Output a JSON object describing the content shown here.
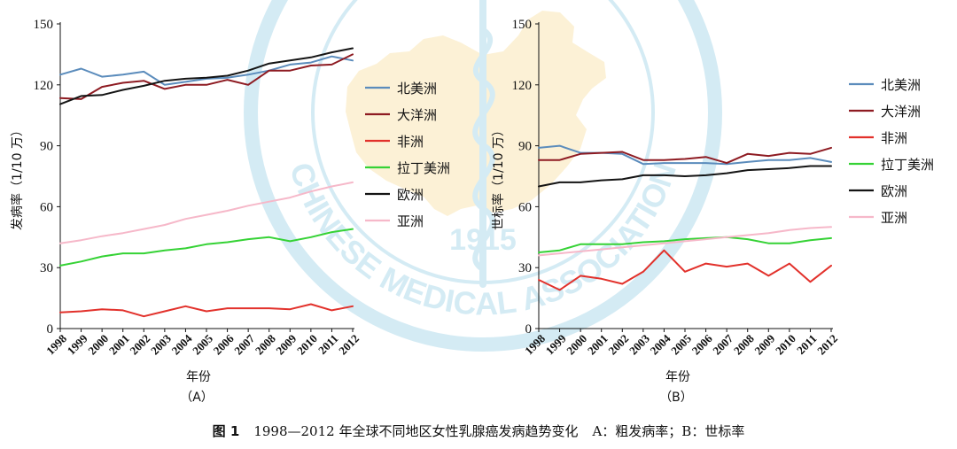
{
  "figure": {
    "caption_label": "图 1",
    "caption_title": "1998—2012 年全球不同地区女性乳腺癌发病趋势变化",
    "caption_note": "A：粗发病率；B：世标率"
  },
  "watermark": {
    "text": "CHINESE MEDICAL ASSOCIATION",
    "year": "1915",
    "ring_color": "#d4ebf4",
    "map_color": "#fcf1d6"
  },
  "chart_data": [
    {
      "type": "line",
      "panel_label": "（A）",
      "xlabel": "年份",
      "ylabel": "发病率（1/10 万）",
      "x": [
        1998,
        1999,
        2000,
        2001,
        2002,
        2003,
        2004,
        2005,
        2006,
        2007,
        2008,
        2009,
        2010,
        2011,
        2012
      ],
      "ylim": [
        0,
        150
      ],
      "yticks": [
        0,
        30,
        60,
        90,
        120,
        150
      ],
      "grid": false,
      "legend_position": "right",
      "series": [
        {
          "name": "北美洲",
          "color": "#5b8cbc",
          "values": [
            125,
            128,
            124,
            125,
            126.5,
            120,
            121.5,
            123,
            123.5,
            125,
            127,
            130,
            131,
            134,
            132
          ]
        },
        {
          "name": "大洋洲",
          "color": "#8e1b22",
          "values": [
            113.5,
            113,
            119,
            121,
            122,
            118,
            120,
            120,
            122.5,
            120,
            127,
            127,
            129.5,
            130,
            135
          ]
        },
        {
          "name": "非洲",
          "color": "#e2312b",
          "values": [
            8,
            8.5,
            9.5,
            9,
            6,
            8.5,
            11,
            8.5,
            10,
            10,
            10,
            9.5,
            12,
            9,
            11
          ]
        },
        {
          "name": "拉丁美洲",
          "color": "#35d235",
          "values": [
            31,
            33,
            35.5,
            37,
            37,
            38.5,
            39.5,
            41.5,
            42.5,
            44,
            45,
            43,
            45,
            47.5,
            49
          ]
        },
        {
          "name": "欧洲",
          "color": "#141414",
          "values": [
            110.5,
            114.5,
            115,
            117.5,
            119.5,
            122,
            123,
            123.5,
            124.5,
            127,
            130.5,
            132,
            133.5,
            136,
            138
          ]
        },
        {
          "name": "亚洲",
          "color": "#f6b8c9",
          "values": [
            42,
            43.5,
            45.5,
            47,
            49,
            51,
            54,
            56,
            58,
            60.5,
            62.5,
            64.5,
            67.5,
            70,
            72
          ]
        }
      ]
    },
    {
      "type": "line",
      "panel_label": "（B）",
      "xlabel": "年份",
      "ylabel": "世标率（1/10 万）",
      "x": [
        1998,
        1999,
        2000,
        2001,
        2002,
        2003,
        2004,
        2005,
        2006,
        2007,
        2008,
        2009,
        2010,
        2011,
        2012
      ],
      "ylim": [
        0,
        150
      ],
      "yticks": [
        0,
        30,
        60,
        90,
        120,
        150
      ],
      "grid": false,
      "legend_position": "right",
      "series": [
        {
          "name": "北美洲",
          "color": "#5b8cbc",
          "values": [
            89,
            90,
            86.5,
            86.5,
            86,
            81,
            81.5,
            81.5,
            81.5,
            81,
            82,
            83,
            83,
            84,
            82
          ]
        },
        {
          "name": "大洋洲",
          "color": "#8e1b22",
          "values": [
            83,
            83,
            86,
            86.5,
            87,
            83,
            83,
            83.5,
            84.5,
            81.5,
            86,
            85,
            86.5,
            86,
            89
          ]
        },
        {
          "name": "非洲",
          "color": "#e2312b",
          "values": [
            24,
            19,
            26,
            24.5,
            22,
            28,
            38.5,
            28,
            32,
            30.5,
            32,
            26,
            32,
            23,
            31
          ]
        },
        {
          "name": "拉丁美洲",
          "color": "#35d235",
          "values": [
            37.5,
            38.5,
            41.5,
            41.5,
            41.5,
            42.5,
            43,
            44,
            44.5,
            45,
            44,
            42,
            42,
            43.5,
            44.5
          ]
        },
        {
          "name": "欧洲",
          "color": "#141414",
          "values": [
            70,
            72,
            72,
            73,
            73.5,
            75.5,
            75.5,
            75,
            75.5,
            76.5,
            78,
            78.5,
            79,
            80,
            80
          ]
        },
        {
          "name": "亚洲",
          "color": "#f6b8c9",
          "values": [
            36,
            37,
            38,
            39,
            40,
            41,
            42,
            43,
            44,
            45,
            46,
            47,
            48.5,
            49.5,
            50
          ]
        }
      ]
    }
  ]
}
